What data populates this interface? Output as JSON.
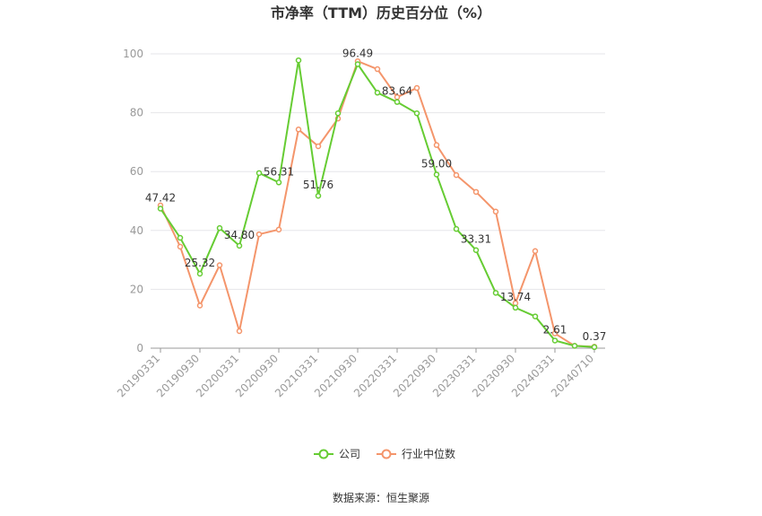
{
  "title": "市净率（TTM）历史百分位（%）",
  "source": "数据来源：恒生聚源",
  "colors": {
    "company": "#66cc33",
    "industry": "#f4956b",
    "grid": "#e6e6ea",
    "axis": "#999999"
  },
  "chart_data": {
    "type": "line",
    "ylim": [
      0,
      100
    ],
    "yticks": [
      0,
      20,
      40,
      60,
      80,
      100
    ],
    "categories": [
      "20190331",
      "20190630",
      "20190930",
      "20191231",
      "20200331",
      "20200630",
      "20200930",
      "20201231",
      "20210331",
      "20210630",
      "20210930",
      "20211231",
      "20220331",
      "20220630",
      "20220930",
      "20221231",
      "20230331",
      "20230630",
      "20230930",
      "20231231",
      "20240331",
      "20240630",
      "20240710"
    ],
    "xtick_labels": [
      "20190331",
      "20190930",
      "20200331",
      "20200930",
      "20210331",
      "20210930",
      "20220331",
      "20220930",
      "20230331",
      "20230930",
      "20240331",
      "20240710"
    ],
    "legend_position": "bottom",
    "grid": true,
    "series": [
      {
        "name": "公司",
        "values": [
          47.42,
          37.5,
          25.32,
          40.8,
          34.8,
          59.5,
          56.31,
          97.8,
          51.76,
          79.8,
          96.49,
          86.8,
          83.64,
          79.8,
          59.0,
          40.5,
          33.31,
          18.8,
          13.74,
          10.8,
          2.61,
          0.8,
          0.37
        ]
      },
      {
        "name": "行业中位数",
        "values": [
          48.5,
          34.5,
          14.5,
          28.2,
          5.8,
          38.7,
          40.3,
          74.3,
          68.6,
          78.0,
          97.5,
          94.8,
          85.3,
          88.4,
          69.0,
          58.8,
          53.1,
          46.4,
          15.3,
          33.0,
          5.0,
          0.8,
          0.5
        ]
      }
    ],
    "data_labels": [
      {
        "index": 0,
        "text": "47.42"
      },
      {
        "index": 2,
        "text": "25.32"
      },
      {
        "index": 4,
        "text": "34.80"
      },
      {
        "index": 6,
        "text": "56.31"
      },
      {
        "index": 8,
        "text": "51.76"
      },
      {
        "index": 10,
        "text": "96.49"
      },
      {
        "index": 12,
        "text": "83.64"
      },
      {
        "index": 14,
        "text": "59.00"
      },
      {
        "index": 16,
        "text": "33.31"
      },
      {
        "index": 18,
        "text": "13.74"
      },
      {
        "index": 20,
        "text": "2.61"
      },
      {
        "index": 22,
        "text": "0.37"
      }
    ]
  }
}
